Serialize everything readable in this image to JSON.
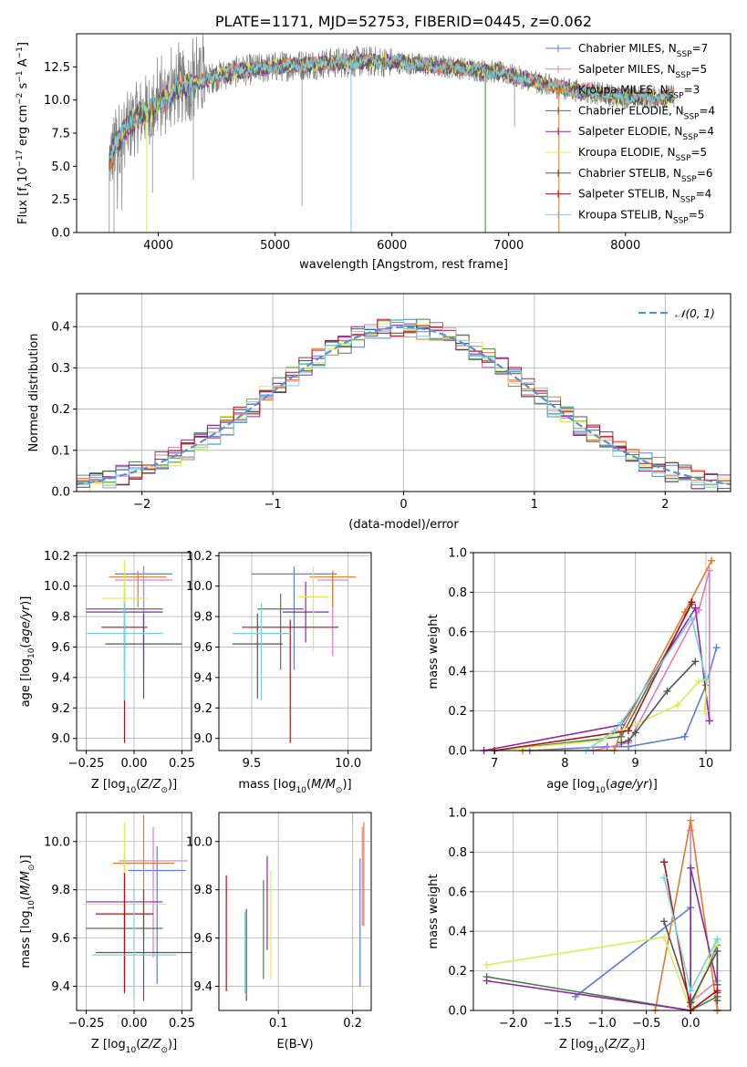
{
  "colors": [
    "#5b7fd6",
    "#e07bc3",
    "#e07b2a",
    "#4a7d4a",
    "#8e2a9e",
    "#d9ec59",
    "#555555",
    "#b0121b",
    "#76d4dc"
  ],
  "chart_data": [
    {
      "id": "spectrum",
      "type": "line",
      "title": "PLATE=1171, MJD=52753, FIBERID=0445, z=0.062",
      "xlabel": "wavelength [Angstrom, rest frame]",
      "ylabel": "Flux [fλ10⁻¹⁷ erg cm⁻² s⁻¹ A⁻¹]",
      "xlim": [
        3300,
        8900
      ],
      "ylim": [
        0,
        15
      ],
      "xticks": [
        4000,
        5000,
        6000,
        7000,
        8000
      ],
      "yticks": [
        0.0,
        2.5,
        5.0,
        7.5,
        10.0,
        12.5
      ],
      "continuum": [
        [
          3580,
          5.5
        ],
        [
          3650,
          7
        ],
        [
          3750,
          8
        ],
        [
          3850,
          9
        ],
        [
          3950,
          9.5
        ],
        [
          4050,
          10
        ],
        [
          4150,
          10.8
        ],
        [
          4300,
          11.2
        ],
        [
          4500,
          11.8
        ],
        [
          4700,
          12.2
        ],
        [
          4900,
          12.4
        ],
        [
          5100,
          12.6
        ],
        [
          5300,
          12.7
        ],
        [
          5500,
          12.8
        ],
        [
          5700,
          12.9
        ],
        [
          5900,
          12.9
        ],
        [
          6100,
          12.8
        ],
        [
          6300,
          12.6
        ],
        [
          6500,
          12.5
        ],
        [
          6700,
          12.3
        ],
        [
          6900,
          12.1
        ],
        [
          7100,
          11.7
        ],
        [
          7300,
          11.2
        ],
        [
          7500,
          10.8
        ],
        [
          7700,
          10.6
        ],
        [
          7900,
          10.3
        ],
        [
          8100,
          10.2
        ],
        [
          8300,
          10.2
        ],
        [
          8420,
          10.3
        ]
      ],
      "legend": {
        "position": "upper right",
        "entries": [
          "Chabrier MILES, N_SSP=7",
          "Salpeter MILES, N_SSP=5",
          "Kroupa MILES, N_SSP=3",
          "Chabrier ELODIE, N_SSP=4",
          "Salpeter ELODIE, N_SSP=4",
          "Kroupa ELODIE, N_SSP=5",
          "Chabrier STELIB, N_SSP=6",
          "Salpeter STELIB, N_SSP=4",
          "Kroupa STELIB, N_SSP=5"
        ]
      },
      "grid": false
    },
    {
      "id": "residuals",
      "type": "histogram",
      "xlabel": "(data-model)/error",
      "ylabel": "Normed distribution",
      "xlim": [
        -2.5,
        2.5
      ],
      "ylim": [
        0,
        0.48
      ],
      "xticks": [
        -2,
        -1,
        0,
        1,
        2
      ],
      "yticks": [
        0.0,
        0.1,
        0.2,
        0.3,
        0.4
      ],
      "bin_width": 0.1,
      "reference": {
        "name": "𝒩(0, 1)",
        "mean": 0,
        "sigma": 1
      },
      "grid": true
    },
    {
      "id": "age_vs_Z",
      "type": "errorbar",
      "xlabel": "Z [log₁₀(Z/Z⊙)]",
      "ylabel": "age  [log₁₀(age/yr)]",
      "xlim": [
        -0.3,
        0.3
      ],
      "ylim": [
        8.92,
        10.22
      ],
      "xticks": [
        -0.25,
        0.0,
        0.25
      ],
      "xticklabels": [
        "−0.25",
        "0.00",
        "0.25"
      ],
      "yticks": [
        9.0,
        9.2,
        9.4,
        9.6,
        9.8,
        10.0,
        10.2
      ],
      "points": [
        {
          "x": 0.05,
          "xerr": 0.15,
          "y": 10.08,
          "yerr_lo": 0.63,
          "yerr_hi": 0.05
        },
        {
          "x": 0.05,
          "xerr": 0.15,
          "y": 10.04,
          "yerr_lo": 0.5,
          "yerr_hi": 0.08
        },
        {
          "x": 0.02,
          "xerr": 0.15,
          "y": 10.06,
          "yerr_lo": 0.2,
          "yerr_hi": 0.04
        },
        {
          "x": -0.05,
          "xerr": 0.2,
          "y": 9.85,
          "yerr_lo": 0.4,
          "yerr_hi": 0.1
        },
        {
          "x": -0.05,
          "xerr": 0.2,
          "y": 9.83,
          "yerr_lo": 0.2,
          "yerr_hi": 0.2
        },
        {
          "x": -0.05,
          "xerr": 0.12,
          "y": 9.92,
          "yerr_lo": 0.35,
          "yerr_hi": 0.25
        },
        {
          "x": 0.05,
          "xerr": 0.2,
          "y": 9.62,
          "yerr_lo": 0.36,
          "yerr_hi": 0.2
        },
        {
          "x": -0.05,
          "xerr": 0.12,
          "y": 9.73,
          "yerr_lo": 0.76,
          "yerr_hi": 0.05
        },
        {
          "x": -0.05,
          "xerr": 0.2,
          "y": 9.69,
          "yerr_lo": 0.44,
          "yerr_hi": 0.2
        }
      ],
      "grid": true
    },
    {
      "id": "age_vs_mass",
      "type": "errorbar",
      "xlabel": "mass [log₁₀(M/M⊙)]",
      "ylabel": "",
      "xlim": [
        9.33,
        10.12
      ],
      "ylim": [
        8.92,
        10.22
      ],
      "xticks": [
        9.5,
        10.0
      ],
      "yticks": [
        9.0,
        9.2,
        9.4,
        9.6,
        9.8,
        10.0,
        10.2
      ],
      "points": [
        {
          "x": 9.72,
          "xerr": 0.22,
          "y": 10.08,
          "yerr_lo": 0.63,
          "yerr_hi": 0.05
        },
        {
          "x": 9.92,
          "xerr": 0.08,
          "y": 10.04,
          "yerr_lo": 0.5,
          "yerr_hi": 0.05
        },
        {
          "x": 9.92,
          "xerr": 0.12,
          "y": 10.06,
          "yerr_lo": 0.2,
          "yerr_hi": 0.04
        },
        {
          "x": 9.65,
          "xerr": 0.12,
          "y": 9.85,
          "yerr_lo": 0.4,
          "yerr_hi": 0.1
        },
        {
          "x": 9.78,
          "xerr": 0.12,
          "y": 9.83,
          "yerr_lo": 0.2,
          "yerr_hi": 0.2
        },
        {
          "x": 9.82,
          "xerr": 0.08,
          "y": 9.93,
          "yerr_lo": 0.35,
          "yerr_hi": 0.2
        },
        {
          "x": 9.53,
          "xerr": 0.13,
          "y": 9.62,
          "yerr_lo": 0.36,
          "yerr_hi": 0.2
        },
        {
          "x": 9.7,
          "xerr": 0.25,
          "y": 9.73,
          "yerr_lo": 0.76,
          "yerr_hi": 0.05
        },
        {
          "x": 9.55,
          "xerr": 0.15,
          "y": 9.69,
          "yerr_lo": 0.44,
          "yerr_hi": 0.2
        }
      ],
      "grid": true
    },
    {
      "id": "massweight_vs_age",
      "type": "line",
      "xlabel": "age  [log₁₀(age/yr)]",
      "ylabel": "mass weight",
      "xlim": [
        6.7,
        10.35
      ],
      "ylim": [
        0,
        1
      ],
      "xticks": [
        7,
        8,
        9,
        10
      ],
      "yticks": [
        0.0,
        0.2,
        0.4,
        0.6,
        0.8,
        1.0
      ],
      "series": [
        {
          "x": [
            7.5,
            8.6,
            8.9,
            9.7,
            10.0,
            10.15
          ],
          "y": [
            0.0,
            0.02,
            0.02,
            0.07,
            0.33,
            0.52
          ]
        },
        {
          "x": [
            8.4,
            8.9,
            9.9,
            10.05,
            10.05
          ],
          "y": [
            0.0,
            0.04,
            0.71,
            0.91,
            0.15
          ]
        },
        {
          "x": [
            7.4,
            8.7,
            8.8,
            9.7,
            10.08
          ],
          "y": [
            0.0,
            0.0,
            0.1,
            0.7,
            0.96
          ]
        },
        {
          "x": [
            7.0,
            8.8,
            9.8
          ],
          "y": [
            0.0,
            0.07,
            0.74
          ]
        },
        {
          "x": [
            6.85,
            8.8,
            9.85,
            10.05
          ],
          "y": [
            0.0,
            0.13,
            0.72,
            0.15
          ]
        },
        {
          "x": [
            7.0,
            8.5,
            9.6,
            9.9,
            10.02,
            9.98
          ],
          "y": [
            0.0,
            0.05,
            0.23,
            0.35,
            0.36,
            0.2
          ]
        },
        {
          "x": [
            8.8,
            8.9,
            9.0,
            9.45,
            9.85
          ],
          "y": [
            0.04,
            0.05,
            0.09,
            0.3,
            0.45
          ]
        },
        {
          "x": [
            7.0,
            8.9,
            9.8
          ],
          "y": [
            0.0,
            0.1,
            0.75
          ]
        },
        {
          "x": [
            8.3,
            8.7,
            8.8,
            9.8,
            10.0
          ],
          "y": [
            0.0,
            0.1,
            0.14,
            0.67,
            0.36
          ]
        }
      ],
      "grid": true
    },
    {
      "id": "mass_vs_Z",
      "type": "errorbar",
      "xlabel": "Z [log₁₀(Z/Z⊙)]",
      "ylabel": "mass [log₁₀(M/M⊙)]",
      "xlim": [
        -0.3,
        0.3
      ],
      "ylim": [
        9.3,
        10.12
      ],
      "xticks": [
        -0.25,
        0.0,
        0.25
      ],
      "xticklabels": [
        "−0.25",
        "0.00",
        "0.25"
      ],
      "yticks": [
        9.4,
        9.6,
        9.8,
        10.0
      ],
      "points": [
        {
          "x": 0.12,
          "xerr": 0.15,
          "y": 9.88,
          "yerr_lo": 0.47,
          "yerr_hi": 0.1
        },
        {
          "x": 0.1,
          "xerr": 0.18,
          "y": 9.92,
          "yerr_lo": 0.4,
          "yerr_hi": 0.14
        },
        {
          "x": 0.05,
          "xerr": 0.16,
          "y": 9.91,
          "yerr_lo": 0.3,
          "yerr_hi": 0.2
        },
        {
          "x": -0.05,
          "xerr": 0.2,
          "y": 9.64,
          "yerr_lo": 0.2,
          "yerr_hi": 0.2
        },
        {
          "x": -0.05,
          "xerr": 0.2,
          "y": 9.75,
          "yerr_lo": 0.38,
          "yerr_hi": 0.2
        },
        {
          "x": -0.05,
          "xerr": 0.22,
          "y": 9.74,
          "yerr_lo": 0.3,
          "yerr_hi": 0.34
        },
        {
          "x": 0.05,
          "xerr": 0.25,
          "y": 9.54,
          "yerr_lo": 0.2,
          "yerr_hi": 0.26
        },
        {
          "x": -0.05,
          "xerr": 0.15,
          "y": 9.7,
          "yerr_lo": 0.32,
          "yerr_hi": 0.17
        },
        {
          "x": 0.0,
          "xerr": 0.22,
          "y": 9.53,
          "yerr_lo": 0.18,
          "yerr_hi": 0.28
        }
      ],
      "grid": true
    },
    {
      "id": "mass_vs_EBV",
      "type": "errorbar",
      "xlabel": "E(B-V)",
      "ylabel": "",
      "xlim": [
        0.02,
        0.225
      ],
      "ylim": [
        9.3,
        10.12
      ],
      "xticks": [
        0.1,
        0.2
      ],
      "yticks": [
        9.4,
        9.6,
        9.8,
        10.0
      ],
      "points": [
        {
          "x": 0.21,
          "xerr": 0,
          "y": 9.7,
          "yerr_lo": 0.3,
          "yerr_hi": 0.23
        },
        {
          "x": 0.213,
          "xerr": 0,
          "y": 9.85,
          "yerr_lo": 0.2,
          "yerr_hi": 0.21
        },
        {
          "x": 0.215,
          "xerr": 0,
          "y": 9.9,
          "yerr_lo": 0.25,
          "yerr_hi": 0.18
        },
        {
          "x": 0.08,
          "xerr": 0,
          "y": 9.64,
          "yerr_lo": 0.21,
          "yerr_hi": 0.2
        },
        {
          "x": 0.085,
          "xerr": 0,
          "y": 9.75,
          "yerr_lo": 0.2,
          "yerr_hi": 0.19
        },
        {
          "x": 0.09,
          "xerr": 0,
          "y": 9.73,
          "yerr_lo": 0.3,
          "yerr_hi": 0.15
        },
        {
          "x": 0.057,
          "xerr": 0,
          "y": 9.54,
          "yerr_lo": 0.2,
          "yerr_hi": 0.18
        },
        {
          "x": 0.03,
          "xerr": 0,
          "y": 9.62,
          "yerr_lo": 0.24,
          "yerr_hi": 0.24
        },
        {
          "x": 0.055,
          "xerr": 0,
          "y": 9.53,
          "yerr_lo": 0.16,
          "yerr_hi": 0.18
        }
      ],
      "grid": true
    },
    {
      "id": "massweight_vs_Z",
      "type": "line",
      "xlabel": "Z [log₁₀(Z/Z⊙)]",
      "ylabel": "mass weight",
      "xlim": [
        -2.45,
        0.45
      ],
      "ylim": [
        0,
        1
      ],
      "xticks": [
        -2.0,
        -1.5,
        -1.0,
        -0.5,
        0.0
      ],
      "xticklabels": [
        "−2.0",
        "−1.5",
        "−1.0",
        "−0.5",
        "0.0"
      ],
      "yticks": [
        0.0,
        0.2,
        0.4,
        0.6,
        0.8,
        1.0
      ],
      "series": [
        {
          "x": [
            -1.3,
            0.0,
            0.0,
            0.3,
            0.3
          ],
          "y": [
            0.07,
            0.52,
            0.02,
            0.33,
            0.0
          ]
        },
        {
          "x": [
            0.0,
            0.0,
            0.3,
            0.3
          ],
          "y": [
            0.91,
            0.04,
            0.15,
            0.0
          ]
        },
        {
          "x": [
            -0.4,
            0.0,
            0.3,
            0.3
          ],
          "y": [
            0.0,
            0.96,
            0.0,
            0.0
          ]
        },
        {
          "x": [
            -2.3,
            0.0,
            0.3
          ],
          "y": [
            0.17,
            0.0,
            0.07
          ]
        },
        {
          "x": [
            -2.3,
            0.0,
            0.0,
            0.3
          ],
          "y": [
            0.15,
            0.0,
            0.72,
            0.13
          ]
        },
        {
          "x": [
            -2.3,
            -0.3,
            0.0,
            0.3,
            0.3
          ],
          "y": [
            0.23,
            0.37,
            0.0,
            0.35,
            0.05
          ]
        },
        {
          "x": [
            -0.3,
            0.0,
            0.3,
            0.3,
            0.3
          ],
          "y": [
            0.45,
            0.04,
            0.3,
            0.05,
            0.09
          ]
        },
        {
          "x": [
            -0.3,
            0.0,
            0.3
          ],
          "y": [
            0.75,
            0.0,
            0.1
          ]
        },
        {
          "x": [
            -0.3,
            0.0,
            0.3
          ],
          "y": [
            0.67,
            0.1,
            0.36
          ]
        }
      ],
      "grid": true
    }
  ]
}
